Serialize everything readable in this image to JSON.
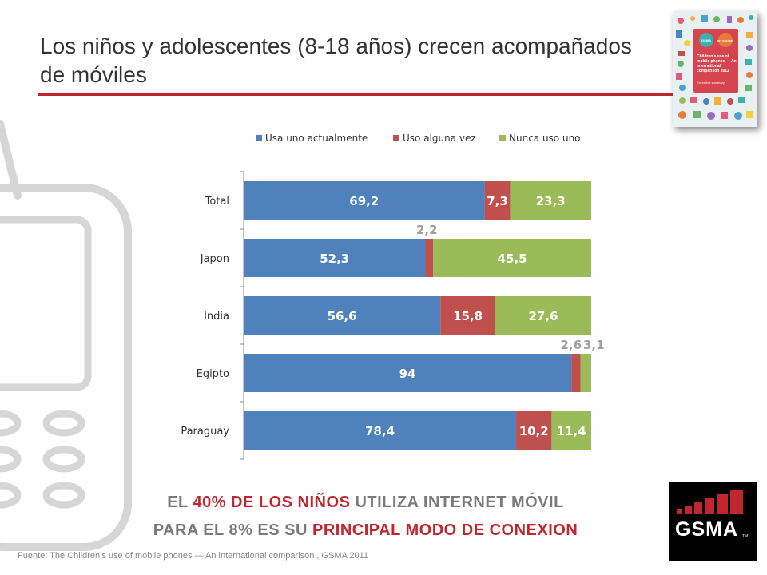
{
  "title": "Los niños y adolescentes (8-18 años) crecen acompañados de móviles",
  "cover": {
    "title": "Children's use of mobile phones — An international comparison 2011",
    "subtitle": "Executive summary",
    "badge_left": "GSMA",
    "badge_right": "NTT DOCOMO"
  },
  "chart_data": {
    "type": "bar",
    "orientation": "horizontal",
    "stacked": true,
    "percent_stacked": true,
    "categories": [
      "Total",
      "Japon",
      "India",
      "Egipto",
      "Paraguay"
    ],
    "series": [
      {
        "name": "Usa uno actualmente",
        "color": "#4f81bd",
        "values": [
          69.2,
          52.3,
          56.6,
          94,
          78.4
        ],
        "labels": [
          "69,2",
          "52,3",
          "56,6",
          "94",
          "78,4"
        ]
      },
      {
        "name": "Uso alguna vez",
        "color": "#c0504d",
        "values": [
          7.3,
          2.2,
          15.8,
          2.6,
          10.2
        ],
        "labels": [
          "7,3",
          "2,2",
          "15,8",
          "2,6",
          "10,2"
        ]
      },
      {
        "name": "Nunca uso uno",
        "color": "#9bbb59",
        "values": [
          23.3,
          45.5,
          27.6,
          3.1,
          11.4
        ],
        "labels": [
          "23,3",
          "45,5",
          "27,6",
          "3,1",
          "11,4"
        ]
      }
    ],
    "legend": "top",
    "grid": false
  },
  "headline": {
    "line1": {
      "pre": "EL ",
      "accent": "40% DE LOS NIÑOS",
      "post": " UTILIZA INTERNET MÓVIL"
    },
    "line2": {
      "pre": "PARA EL 8% ES SU ",
      "accent": "PRINCIPAL MODO DE CONEXION"
    }
  },
  "source": "Fuente: The Children’s use of mobile phones — An international comparison , GSMA 2011",
  "logo": {
    "text": "GSMA",
    "tm": "TM"
  },
  "colors": {
    "accent": "#c0262e",
    "headline_gray": "#7a7a7a"
  }
}
